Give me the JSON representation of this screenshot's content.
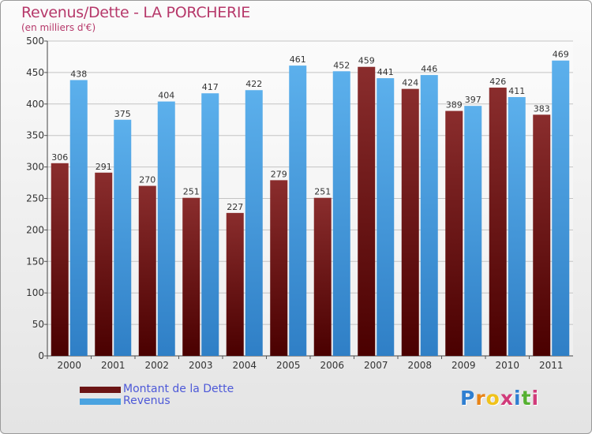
{
  "title": "Revenus/Dette - LA PORCHERIE",
  "subtitle": "(en milliers d'€)",
  "colors": {
    "title": "#b6386a",
    "debt": "#6b1414",
    "revenue": "#4aa3e0",
    "legend_text": "#4d59d8",
    "grid": "#c4c4c4"
  },
  "legend": {
    "items": [
      {
        "label": "Montant de la Dette",
        "color": "#6b1414"
      },
      {
        "label": "Revenus",
        "color": "#4aa3e0"
      }
    ]
  },
  "logo": {
    "letters": [
      "P",
      "r",
      "o",
      "x",
      "i",
      "t",
      "i"
    ],
    "colors": [
      "#2f7fd1",
      "#e88418",
      "#f0c21a",
      "#d13b7a",
      "#2f7fd1",
      "#55b030",
      "#d13b7a"
    ]
  },
  "chart_data": {
    "type": "bar",
    "categories": [
      "2000",
      "2001",
      "2002",
      "2003",
      "2004",
      "2005",
      "2006",
      "2007",
      "2008",
      "2009",
      "2010",
      "2011"
    ],
    "series": [
      {
        "name": "Montant de la Dette",
        "values": [
          306,
          291,
          270,
          251,
          227,
          279,
          251,
          459,
          424,
          389,
          426,
          383
        ]
      },
      {
        "name": "Revenus",
        "values": [
          438,
          375,
          404,
          417,
          422,
          461,
          452,
          441,
          446,
          397,
          411,
          469
        ]
      }
    ],
    "yticks": [
      0,
      50,
      100,
      150,
      200,
      250,
      300,
      350,
      400,
      450,
      500
    ],
    "ylim": [
      0,
      500
    ],
    "grid": true,
    "legend_position": "bottom-left"
  }
}
